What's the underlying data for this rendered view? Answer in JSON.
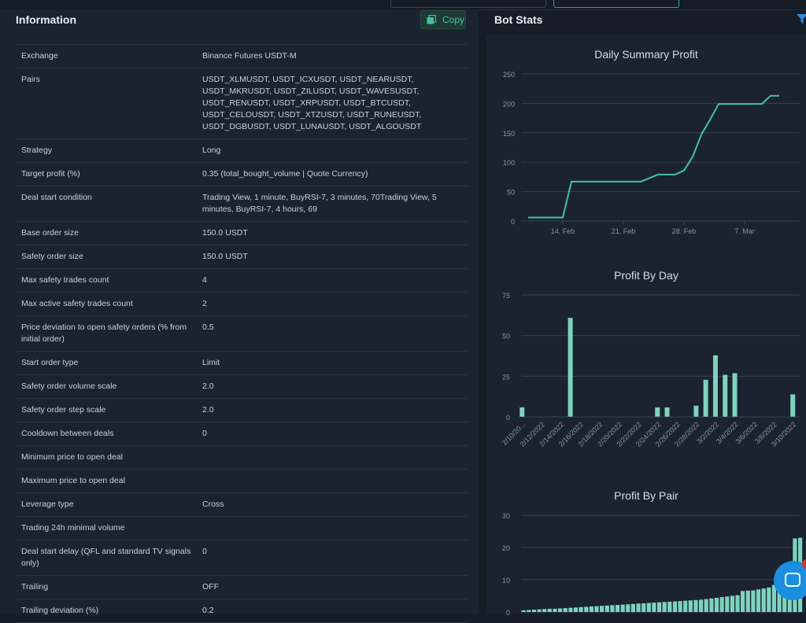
{
  "information": {
    "title": "Information",
    "copy_label": "Copy",
    "rows": [
      {
        "key": "Exchange",
        "value": "Binance Futures USDT-M"
      },
      {
        "key": "Pairs",
        "value": "USDT_XLMUSDT, USDT_ICXUSDT, USDT_NEARUSDT, USDT_MKRUSDT, USDT_ZILUSDT, USDT_WAVESUSDT, USDT_RENUSDT, USDT_XRPUSDT, USDT_BTCUSDT, USDT_CELOUSDT, USDT_XTZUSDT, USDT_RUNEUSDT, USDT_DGBUSDT, USDT_LUNAUSDT, USDT_ALGOUSDT"
      },
      {
        "key": "Strategy",
        "value": "Long"
      },
      {
        "key": "Target profit (%)",
        "value": "0.35 (total_bought_volume | Quote Currency)"
      },
      {
        "key": "Deal start condition",
        "value": "Trading View, 1 minute, BuyRSI-7, 3 minutes, 70Trading View, 5 minutes, BuyRSI-7, 4 hours, 69"
      },
      {
        "key": "Base order size",
        "value": "150.0 USDT"
      },
      {
        "key": "Safety order size",
        "value": "150.0 USDT"
      },
      {
        "key": "Max safety trades count",
        "value": "4"
      },
      {
        "key": "Max active safety trades count",
        "value": "2"
      },
      {
        "key": "Price deviation to open safety orders (% from initial order)",
        "value": "0.5"
      },
      {
        "key": "Start order type",
        "value": "Limit"
      },
      {
        "key": "Safety order volume scale",
        "value": "2.0"
      },
      {
        "key": "Safety order step scale",
        "value": "2.0"
      },
      {
        "key": "Cooldown between deals",
        "value": "0"
      },
      {
        "key": "Minimum price to open deal",
        "value": ""
      },
      {
        "key": "Maximum price to open deal",
        "value": ""
      },
      {
        "key": "Leverage type",
        "value": "Cross"
      },
      {
        "key": "Trading 24h minimal volume",
        "value": ""
      },
      {
        "key": "Deal start delay (QFL and standard TV signals only)",
        "value": "0"
      },
      {
        "key": "Trailing",
        "value": "OFF"
      },
      {
        "key": "Trailing deviation (%)",
        "value": "0.2"
      }
    ]
  },
  "bot_stats": {
    "title": "Bot Stats"
  },
  "colors": {
    "accent": "#45c1a5",
    "bar_fill": "#7fd3bd",
    "panel": "#1b2330",
    "background": "#161d27",
    "grid": "#3a4350"
  },
  "icons": {
    "copy": "copy-icon",
    "filter": "filter-icon",
    "chat": "chat-icon"
  },
  "chart_data": [
    {
      "type": "line",
      "title": "Daily Summary Profit",
      "x": [
        "2022-02-10",
        "2022-02-11",
        "2022-02-12",
        "2022-02-13",
        "2022-02-14",
        "2022-02-15",
        "2022-02-16",
        "2022-02-17",
        "2022-02-18",
        "2022-02-19",
        "2022-02-20",
        "2022-02-21",
        "2022-02-22",
        "2022-02-23",
        "2022-02-24",
        "2022-02-25",
        "2022-02-26",
        "2022-02-27",
        "2022-02-28",
        "2022-03-01",
        "2022-03-02",
        "2022-03-03",
        "2022-03-04",
        "2022-03-05",
        "2022-03-06",
        "2022-03-07",
        "2022-03-08",
        "2022-03-09",
        "2022-03-10",
        "2022-03-11"
      ],
      "values": [
        6,
        6,
        6,
        6,
        6,
        67,
        67,
        67,
        67,
        67,
        67,
        67,
        67,
        67,
        73,
        79,
        79,
        79,
        86,
        109,
        147,
        172,
        199,
        199,
        199,
        199,
        199,
        199,
        213,
        213
      ],
      "xticks": [
        "14. Feb",
        "21. Feb",
        "28. Feb",
        "7. Mar"
      ],
      "yticks": [
        0,
        50,
        100,
        150,
        200,
        250
      ],
      "ylim": [
        0,
        250
      ],
      "grid": true
    },
    {
      "type": "bar",
      "title": "Profit By Day",
      "categories": [
        "2/10/2022",
        "2/11/2022",
        "2/12/2022",
        "2/13/2022",
        "2/14/2022",
        "2/15/2022",
        "2/16/2022",
        "2/17/2022",
        "2/18/2022",
        "2/19/2022",
        "2/20/2022",
        "2/21/2022",
        "2/22/2022",
        "2/23/2022",
        "2/24/2022",
        "2/25/2022",
        "2/26/2022",
        "2/27/2022",
        "2/28/2022",
        "3/1/2022",
        "3/2/2022",
        "3/3/2022",
        "3/4/2022",
        "3/5/2022",
        "3/6/2022",
        "3/7/2022",
        "3/8/2022",
        "3/9/2022",
        "3/10/2022"
      ],
      "tick_labels": [
        "2/10/20...",
        "2/12/2022",
        "2/14/2022",
        "2/16/2022",
        "2/18/2022",
        "2/20/2022",
        "2/22/2022",
        "2/24/2022",
        "2/26/2022",
        "2/28/2022",
        "3/2/2022",
        "3/4/2022",
        "3/6/2022",
        "3/8/2022",
        "3/10/2022"
      ],
      "values": [
        6,
        0,
        0,
        0,
        0,
        61,
        0,
        0,
        0,
        0,
        0,
        0,
        0,
        0,
        6,
        6,
        0,
        0,
        7,
        23,
        38,
        26,
        27,
        0,
        0,
        0,
        0,
        0,
        14
      ],
      "yticks": [
        0,
        25,
        50,
        75
      ],
      "ylim": [
        0,
        75
      ],
      "grid": true
    },
    {
      "type": "bar",
      "title": "Profit By Pair",
      "values": [
        0.5,
        0.6,
        0.7,
        0.8,
        0.9,
        1,
        1,
        1.1,
        1.2,
        1.3,
        1.4,
        1.5,
        1.6,
        1.7,
        1.8,
        1.9,
        2,
        2.1,
        2.2,
        2.3,
        2.4,
        2.5,
        2.6,
        2.7,
        2.8,
        2.9,
        3,
        3.1,
        3.2,
        3.3,
        3.4,
        3.5,
        3.6,
        3.7,
        3.8,
        4,
        4.2,
        4.4,
        4.6,
        4.8,
        5,
        5.2,
        6.5,
        6.6,
        6.7,
        7,
        7.3,
        7.6,
        8.4,
        9.5,
        9.8,
        10.2,
        22.8,
        23
      ],
      "yticks": [
        0,
        10,
        20,
        30
      ],
      "ylim": [
        0,
        30
      ],
      "grid": true
    }
  ]
}
